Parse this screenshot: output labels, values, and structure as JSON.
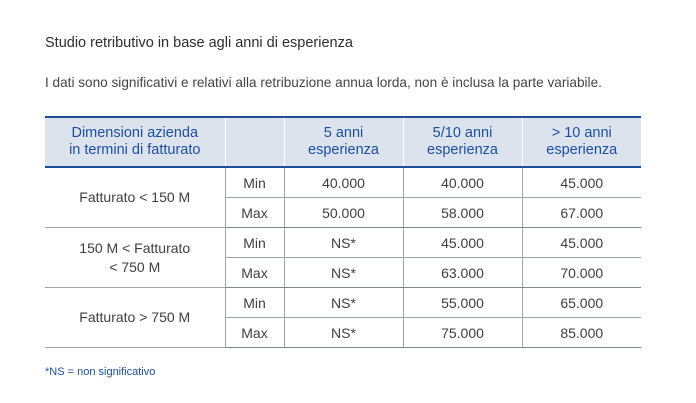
{
  "title": "Studio retributivo in base agli anni di esperienza",
  "subtitle": "I dati sono significativi e relativi alla retribuzione annua lorda, non è inclusa la parte variabile.",
  "table": {
    "headers": {
      "size_line1": "Dimensioni azienda",
      "size_line2": "in termini di fatturato",
      "kind": "",
      "col_a_line1": "5 anni",
      "col_a_line2": "esperienza",
      "col_b_line1": "5/10 anni",
      "col_b_line2": "esperienza",
      "col_c_line1": "> 10 anni",
      "col_c_line2": "esperienza"
    },
    "groups": [
      {
        "size_line1": "Fatturato < 150 M",
        "size_line2": "",
        "rows": [
          {
            "kind": "Min",
            "a": "40.000",
            "b": "40.000",
            "c": "45.000"
          },
          {
            "kind": "Max",
            "a": "50.000",
            "b": "58.000",
            "c": "67.000"
          }
        ]
      },
      {
        "size_line1": "150 M < Fatturato",
        "size_line2": "< 750 M",
        "rows": [
          {
            "kind": "Min",
            "a": "NS*",
            "b": "45.000",
            "c": "45.000"
          },
          {
            "kind": "Max",
            "a": "NS*",
            "b": "63.000",
            "c": "70.000"
          }
        ]
      },
      {
        "size_line1": "Fatturato > 750 M",
        "size_line2": "",
        "rows": [
          {
            "kind": "Min",
            "a": "NS*",
            "b": "55.000",
            "c": "65.000"
          },
          {
            "kind": "Max",
            "a": "NS*",
            "b": "75.000",
            "c": "85.000"
          }
        ]
      }
    ]
  },
  "footnote": "*NS = non significativo"
}
